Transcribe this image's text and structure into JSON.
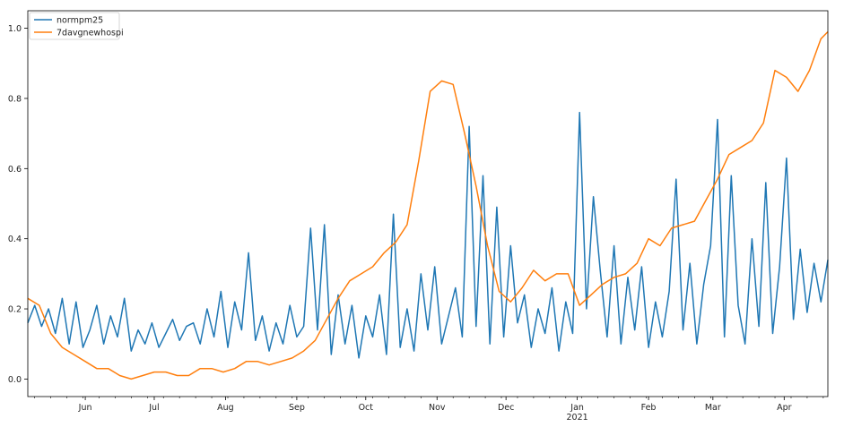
{
  "chart_data": {
    "type": "line",
    "title": "",
    "xlabel": "",
    "ylabel": "",
    "grid": false,
    "legend_placement": "top-left",
    "ylim": [
      -0.05,
      1.05
    ],
    "xlim": [
      "2020-05-07",
      "2021-04-20"
    ],
    "y_ticks": [
      {
        "value": 0.0,
        "label": "0.0"
      },
      {
        "value": 0.2,
        "label": "0.2"
      },
      {
        "value": 0.4,
        "label": "0.4"
      },
      {
        "value": 0.6,
        "label": "0.6"
      },
      {
        "value": 0.8,
        "label": "0.8"
      },
      {
        "value": 1.0,
        "label": "1.0"
      }
    ],
    "x_ticks": [
      {
        "date": "2020-06-01",
        "label": "Jun"
      },
      {
        "date": "2020-07-01",
        "label": "Jul"
      },
      {
        "date": "2020-08-01",
        "label": "Aug"
      },
      {
        "date": "2020-09-01",
        "label": "Sep"
      },
      {
        "date": "2020-10-01",
        "label": "Oct"
      },
      {
        "date": "2020-11-01",
        "label": "Nov"
      },
      {
        "date": "2020-12-01",
        "label": "Dec"
      },
      {
        "date": "2021-01-01",
        "label": "Jan",
        "sublabel": "2021"
      },
      {
        "date": "2021-02-01",
        "label": "Feb"
      },
      {
        "date": "2021-03-01",
        "label": "Mar"
      },
      {
        "date": "2021-04-01",
        "label": "Apr"
      }
    ],
    "series": [
      {
        "name": "normpm25",
        "color": "#1f77b4",
        "x": [
          "2020-05-07",
          "2020-05-10",
          "2020-05-13",
          "2020-05-16",
          "2020-05-19",
          "2020-05-22",
          "2020-05-25",
          "2020-05-28",
          "2020-05-31",
          "2020-06-03",
          "2020-06-06",
          "2020-06-09",
          "2020-06-12",
          "2020-06-15",
          "2020-06-18",
          "2020-06-21",
          "2020-06-24",
          "2020-06-27",
          "2020-06-30",
          "2020-07-03",
          "2020-07-06",
          "2020-07-09",
          "2020-07-12",
          "2020-07-15",
          "2020-07-18",
          "2020-07-21",
          "2020-07-24",
          "2020-07-27",
          "2020-07-30",
          "2020-08-02",
          "2020-08-05",
          "2020-08-08",
          "2020-08-11",
          "2020-08-14",
          "2020-08-17",
          "2020-08-20",
          "2020-08-23",
          "2020-08-26",
          "2020-08-29",
          "2020-09-01",
          "2020-09-04",
          "2020-09-07",
          "2020-09-10",
          "2020-09-13",
          "2020-09-16",
          "2020-09-19",
          "2020-09-22",
          "2020-09-25",
          "2020-09-28",
          "2020-10-01",
          "2020-10-04",
          "2020-10-07",
          "2020-10-10",
          "2020-10-13",
          "2020-10-16",
          "2020-10-19",
          "2020-10-22",
          "2020-10-25",
          "2020-10-28",
          "2020-10-31",
          "2020-11-03",
          "2020-11-06",
          "2020-11-09",
          "2020-11-12",
          "2020-11-15",
          "2020-11-18",
          "2020-11-21",
          "2020-11-24",
          "2020-11-27",
          "2020-11-30",
          "2020-12-03",
          "2020-12-06",
          "2020-12-09",
          "2020-12-12",
          "2020-12-15",
          "2020-12-18",
          "2020-12-21",
          "2020-12-24",
          "2020-12-27",
          "2020-12-30",
          "2021-01-02",
          "2021-01-05",
          "2021-01-08",
          "2021-01-11",
          "2021-01-14",
          "2021-01-17",
          "2021-01-20",
          "2021-01-23",
          "2021-01-26",
          "2021-01-29",
          "2021-02-01",
          "2021-02-04",
          "2021-02-07",
          "2021-02-10",
          "2021-02-13",
          "2021-02-16",
          "2021-02-19",
          "2021-02-22",
          "2021-02-25",
          "2021-02-28",
          "2021-03-03",
          "2021-03-06",
          "2021-03-09",
          "2021-03-12",
          "2021-03-15",
          "2021-03-18",
          "2021-03-21",
          "2021-03-24",
          "2021-03-27",
          "2021-03-30",
          "2021-04-02",
          "2021-04-05",
          "2021-04-08",
          "2021-04-11",
          "2021-04-14",
          "2021-04-17",
          "2021-04-20"
        ],
        "values": [
          0.16,
          0.21,
          0.15,
          0.2,
          0.13,
          0.23,
          0.1,
          0.22,
          0.09,
          0.14,
          0.21,
          0.1,
          0.18,
          0.12,
          0.23,
          0.08,
          0.14,
          0.1,
          0.16,
          0.09,
          0.13,
          0.17,
          0.11,
          0.15,
          0.16,
          0.1,
          0.2,
          0.12,
          0.25,
          0.09,
          0.22,
          0.14,
          0.36,
          0.11,
          0.18,
          0.08,
          0.16,
          0.1,
          0.21,
          0.12,
          0.15,
          0.43,
          0.14,
          0.44,
          0.07,
          0.24,
          0.1,
          0.21,
          0.06,
          0.18,
          0.12,
          0.24,
          0.07,
          0.47,
          0.09,
          0.2,
          0.08,
          0.3,
          0.14,
          0.32,
          0.1,
          0.18,
          0.26,
          0.12,
          0.72,
          0.15,
          0.58,
          0.1,
          0.49,
          0.12,
          0.38,
          0.16,
          0.24,
          0.09,
          0.2,
          0.13,
          0.26,
          0.08,
          0.22,
          0.13,
          0.76,
          0.2,
          0.52,
          0.31,
          0.12,
          0.38,
          0.1,
          0.29,
          0.14,
          0.32,
          0.09,
          0.22,
          0.12,
          0.25,
          0.57,
          0.14,
          0.33,
          0.1,
          0.27,
          0.38,
          0.74,
          0.12,
          0.58,
          0.21,
          0.1,
          0.4,
          0.15,
          0.56,
          0.13,
          0.32,
          0.63,
          0.17,
          0.37,
          0.19,
          0.33,
          0.22,
          0.34
        ]
      },
      {
        "name": "7davgnewhospi",
        "color": "#ff7f0e",
        "x": [
          "2020-05-07",
          "2020-05-12",
          "2020-05-17",
          "2020-05-22",
          "2020-05-27",
          "2020-06-01",
          "2020-06-06",
          "2020-06-11",
          "2020-06-16",
          "2020-06-21",
          "2020-06-26",
          "2020-07-01",
          "2020-07-06",
          "2020-07-11",
          "2020-07-16",
          "2020-07-21",
          "2020-07-26",
          "2020-07-31",
          "2020-08-05",
          "2020-08-10",
          "2020-08-15",
          "2020-08-20",
          "2020-08-25",
          "2020-08-30",
          "2020-09-04",
          "2020-09-09",
          "2020-09-14",
          "2020-09-19",
          "2020-09-24",
          "2020-09-29",
          "2020-10-04",
          "2020-10-09",
          "2020-10-14",
          "2020-10-19",
          "2020-10-24",
          "2020-10-29",
          "2020-11-03",
          "2020-11-08",
          "2020-11-13",
          "2020-11-18",
          "2020-11-23",
          "2020-11-28",
          "2020-12-03",
          "2020-12-08",
          "2020-12-13",
          "2020-12-18",
          "2020-12-23",
          "2020-12-28",
          "2021-01-02",
          "2021-01-07",
          "2021-01-12",
          "2021-01-17",
          "2021-01-22",
          "2021-01-27",
          "2021-02-01",
          "2021-02-06",
          "2021-02-11",
          "2021-02-16",
          "2021-02-21",
          "2021-02-26",
          "2021-03-03",
          "2021-03-08",
          "2021-03-13",
          "2021-03-18",
          "2021-03-23",
          "2021-03-28",
          "2021-04-02",
          "2021-04-07",
          "2021-04-12",
          "2021-04-17",
          "2021-04-20"
        ],
        "values": [
          0.23,
          0.21,
          0.13,
          0.09,
          0.07,
          0.05,
          0.03,
          0.03,
          0.01,
          0.0,
          0.01,
          0.02,
          0.02,
          0.01,
          0.01,
          0.03,
          0.03,
          0.02,
          0.03,
          0.05,
          0.05,
          0.04,
          0.05,
          0.06,
          0.08,
          0.11,
          0.17,
          0.23,
          0.28,
          0.3,
          0.32,
          0.36,
          0.39,
          0.44,
          0.62,
          0.82,
          0.85,
          0.84,
          0.7,
          0.55,
          0.38,
          0.25,
          0.22,
          0.26,
          0.31,
          0.28,
          0.3,
          0.3,
          0.21,
          0.24,
          0.27,
          0.29,
          0.3,
          0.33,
          0.4,
          0.38,
          0.43,
          0.44,
          0.45,
          0.51,
          0.57,
          0.64,
          0.66,
          0.68,
          0.73,
          0.88,
          0.86,
          0.82,
          0.88,
          0.97,
          0.99
        ]
      }
    ]
  }
}
